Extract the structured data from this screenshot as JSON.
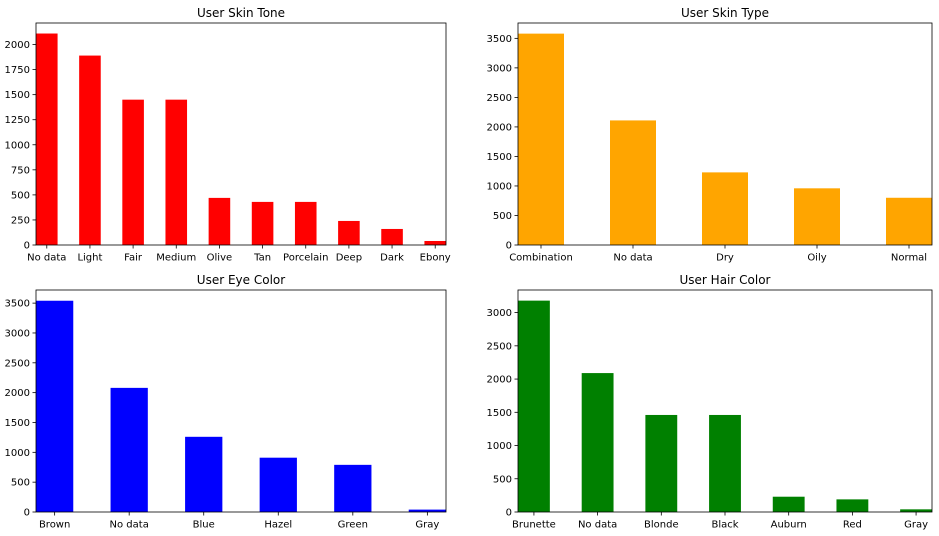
{
  "chart_data": [
    {
      "type": "bar",
      "title": "User Skin Tone",
      "categories": [
        "No data",
        "Light",
        "Fair",
        "Medium",
        "Olive",
        "Tan",
        "Porcelain",
        "Deep",
        "Dark",
        "Ebony"
      ],
      "values": [
        2110,
        1890,
        1450,
        1450,
        470,
        430,
        430,
        240,
        160,
        40
      ],
      "color": "#ff0000",
      "ylim": [
        0,
        2215
      ],
      "yticks": [
        0,
        250,
        500,
        750,
        1000,
        1250,
        1500,
        1750,
        2000
      ]
    },
    {
      "type": "bar",
      "title": "User Skin Type",
      "categories": [
        "Combination",
        "No data",
        "Dry",
        "Oily",
        "Normal"
      ],
      "values": [
        3580,
        2110,
        1230,
        960,
        800
      ],
      "color": "#ffa500",
      "ylim": [
        0,
        3760
      ],
      "yticks": [
        0,
        500,
        1000,
        1500,
        2000,
        2500,
        3000,
        3500
      ]
    },
    {
      "type": "bar",
      "title": "User Eye Color",
      "categories": [
        "Brown",
        "No data",
        "Blue",
        "Hazel",
        "Green",
        "Gray"
      ],
      "values": [
        3540,
        2080,
        1260,
        910,
        790,
        40
      ],
      "color": "#0000ff",
      "ylim": [
        0,
        3720
      ],
      "yticks": [
        0,
        500,
        1000,
        1500,
        2000,
        2500,
        3000,
        3500
      ]
    },
    {
      "type": "bar",
      "title": "User Hair Color",
      "categories": [
        "Brunette",
        "No data",
        "Blonde",
        "Black",
        "Auburn",
        "Red",
        "Gray"
      ],
      "values": [
        3180,
        2090,
        1460,
        1460,
        230,
        190,
        40
      ],
      "color": "#008000",
      "ylim": [
        0,
        3340
      ],
      "yticks": [
        0,
        500,
        1000,
        1500,
        2000,
        2500,
        3000
      ]
    }
  ]
}
